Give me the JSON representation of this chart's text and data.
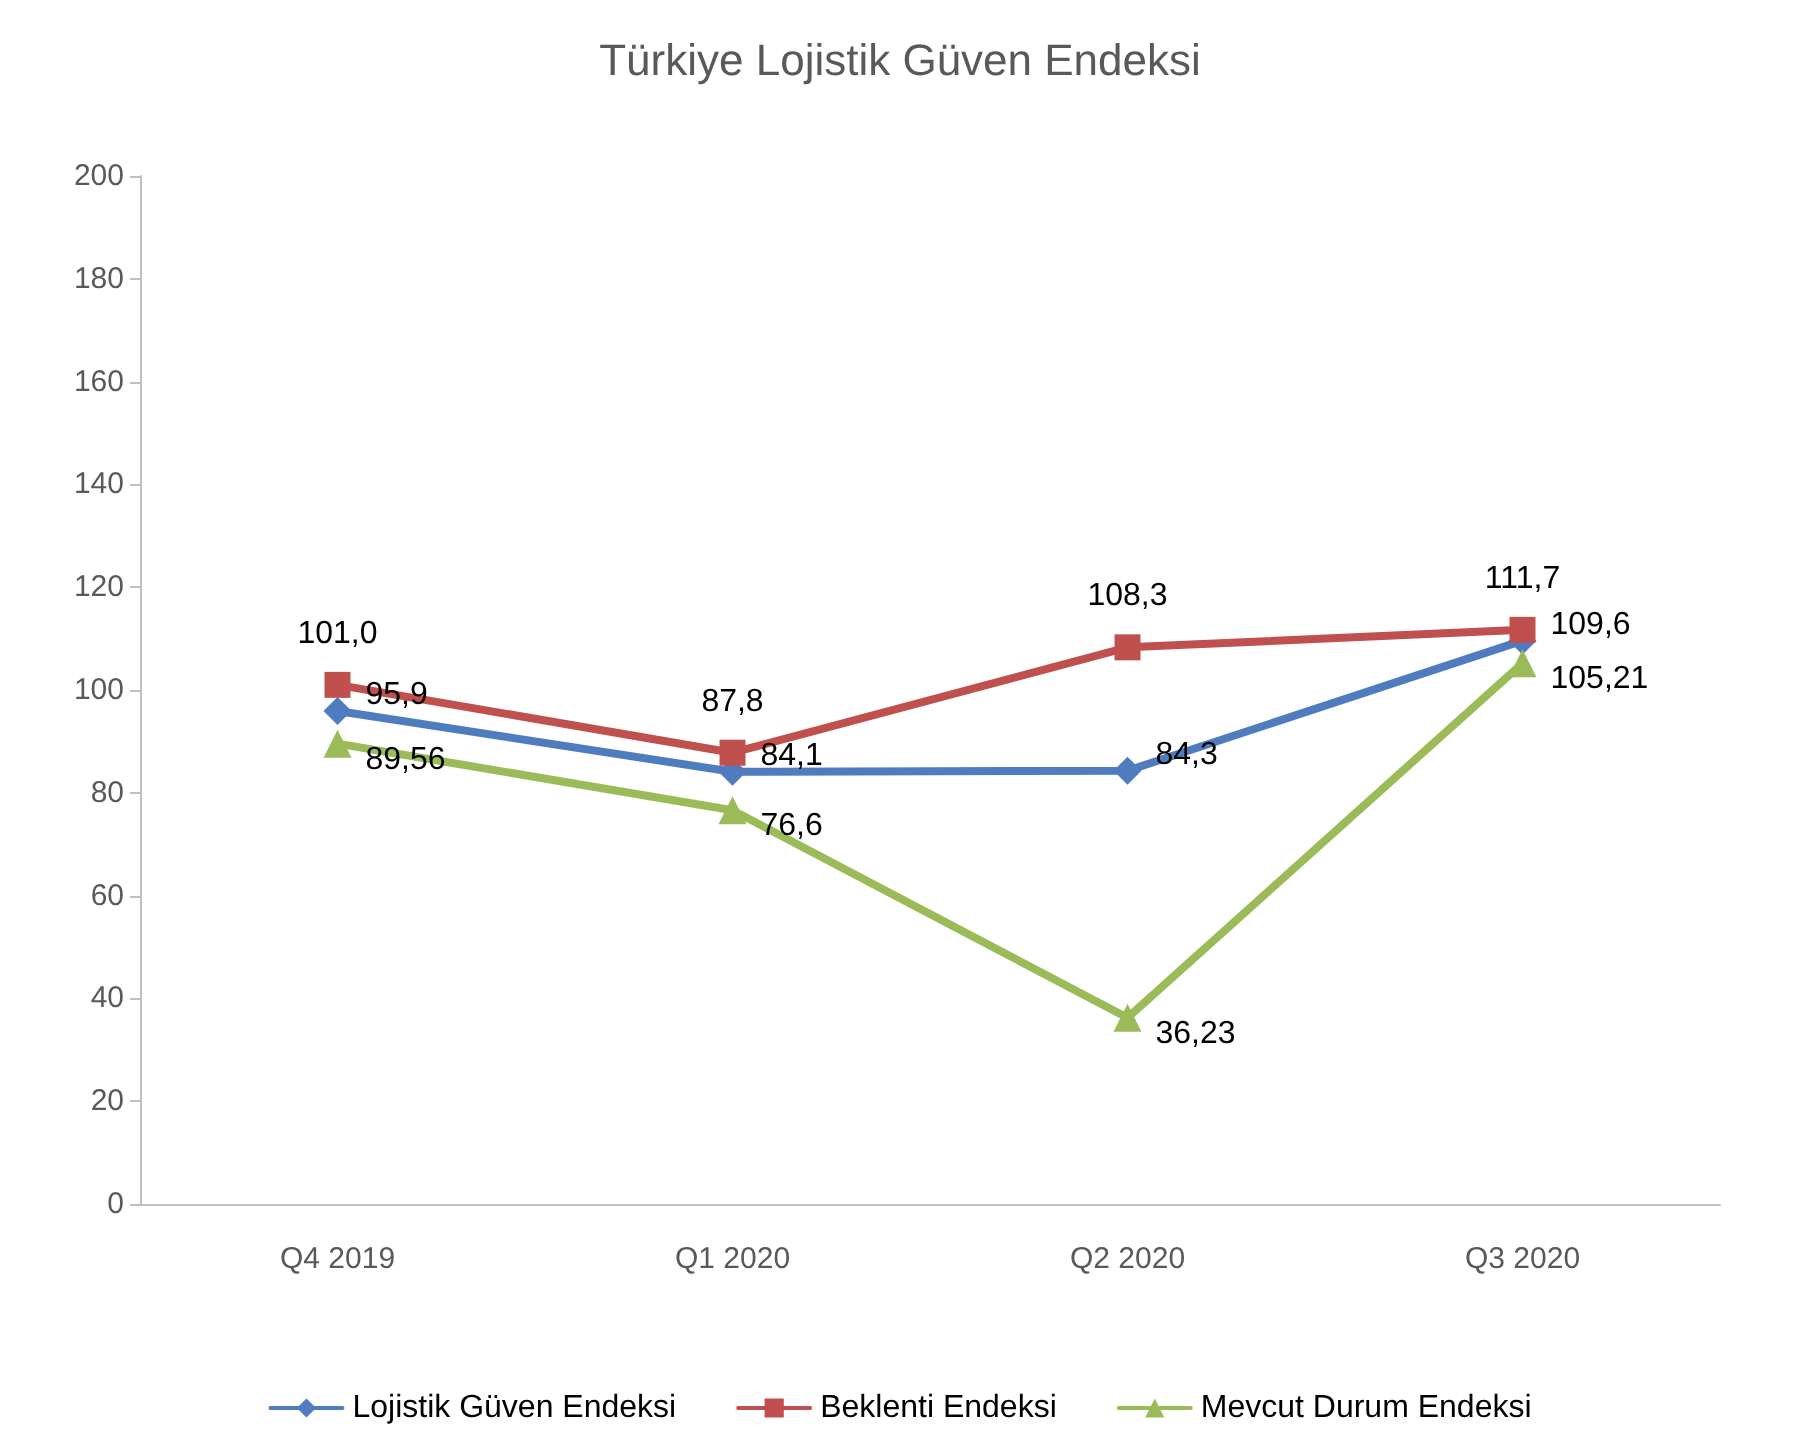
{
  "chart_data": {
    "type": "line",
    "title": "Türkiye Lojistik Güven Endeksi",
    "categories": [
      "Q4 2019",
      "Q1 2020",
      "Q2 2020",
      "Q3 2020"
    ],
    "series": [
      {
        "name": "Lojistik Güven Endeksi",
        "color": "#4f7bbf",
        "marker": "diamond",
        "values": [
          95.9,
          84.1,
          84.3,
          109.6
        ],
        "value_labels": [
          "95,9",
          "84,1",
          "84,3",
          "109,6"
        ]
      },
      {
        "name": "Beklenti Endeksi",
        "color": "#c0504d",
        "marker": "square",
        "values": [
          101.0,
          87.8,
          108.3,
          111.7
        ],
        "value_labels": [
          "101,0",
          "87,8",
          "108,3",
          "111,7"
        ]
      },
      {
        "name": "Mevcut Durum Endeksi",
        "color": "#9bbb59",
        "marker": "triangle",
        "values": [
          89.56,
          76.6,
          36.23,
          105.21
        ],
        "value_labels": [
          "89,56",
          "76,6",
          "36,23",
          "105,21"
        ]
      }
    ],
    "ylim": [
      0,
      200
    ],
    "yticks": [
      0,
      20,
      40,
      60,
      80,
      100,
      120,
      140,
      160,
      180,
      200
    ],
    "grid": false,
    "legend": "bottom",
    "line_style": "solid"
  }
}
